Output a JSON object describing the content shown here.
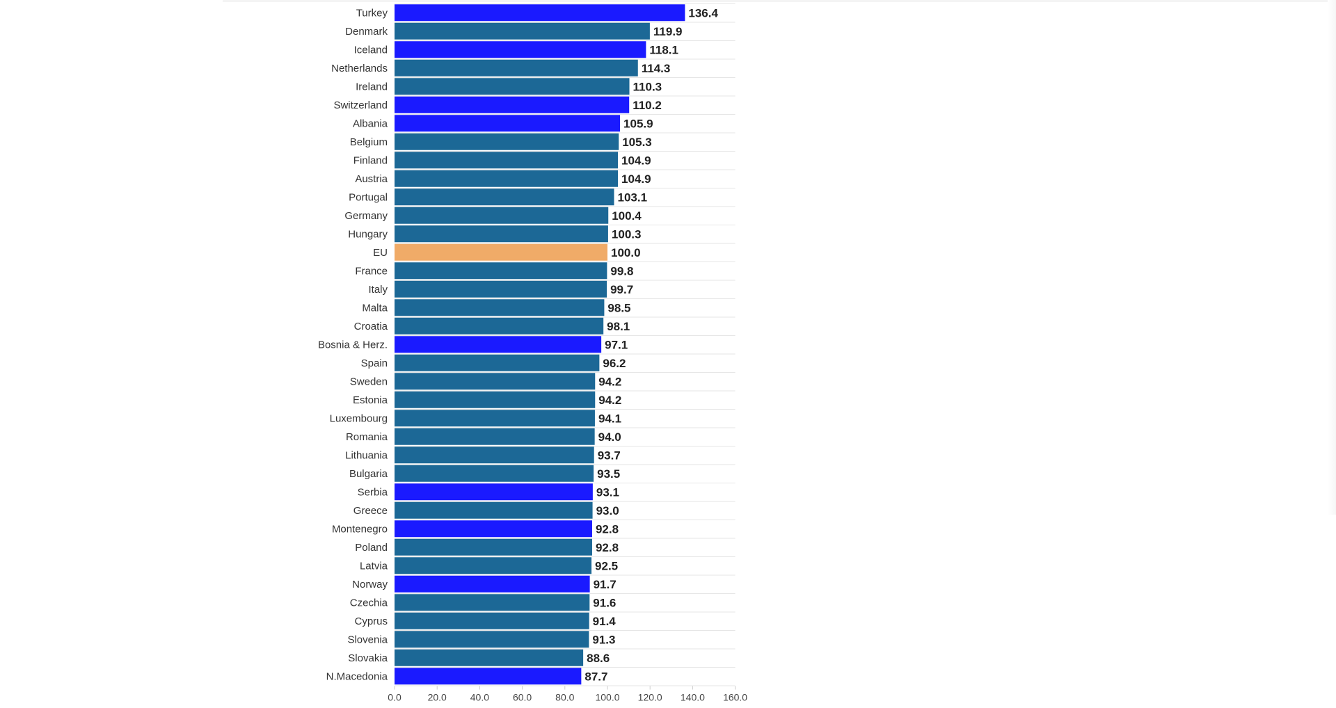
{
  "colors": {
    "highlight": "#1a1aff",
    "default": "#1c6896",
    "eu": "#f0ab68",
    "grid": "#e6e6e6",
    "value_text": "#222222"
  },
  "chart_data": {
    "type": "bar",
    "orientation": "horizontal",
    "title": "",
    "xlabel": "",
    "ylabel": "",
    "xlim": [
      0,
      160
    ],
    "grid": true,
    "ticks": [
      "0.0",
      "20.0",
      "40.0",
      "60.0",
      "80.0",
      "100.0",
      "120.0",
      "140.0",
      "160.0"
    ],
    "tick_values": [
      0,
      20,
      40,
      60,
      80,
      100,
      120,
      140,
      160
    ],
    "categories": [
      "Turkey",
      "Denmark",
      "Iceland",
      "Netherlands",
      "Ireland",
      "Switzerland",
      "Albania",
      "Belgium",
      "Finland",
      "Austria",
      "Portugal",
      "Germany",
      "Hungary",
      "EU",
      "France",
      "Italy",
      "Malta",
      "Croatia",
      "Bosnia & Herz.",
      "Spain",
      "Sweden",
      "Estonia",
      "Luxembourg",
      "Romania",
      "Lithuania",
      "Bulgaria",
      "Serbia",
      "Greece",
      "Montenegro",
      "Poland",
      "Latvia",
      "Norway",
      "Czechia",
      "Cyprus",
      "Slovenia",
      "Slovakia",
      "N.Macedonia"
    ],
    "values": [
      136.4,
      119.9,
      118.1,
      114.3,
      110.3,
      110.2,
      105.9,
      105.3,
      104.9,
      104.9,
      103.1,
      100.4,
      100.3,
      100.0,
      99.8,
      99.7,
      98.5,
      98.1,
      97.1,
      96.2,
      94.2,
      94.2,
      94.1,
      94.0,
      93.7,
      93.5,
      93.1,
      93.0,
      92.8,
      92.8,
      92.5,
      91.7,
      91.6,
      91.4,
      91.3,
      88.6,
      87.7
    ],
    "value_labels": [
      "136.4",
      "119.9",
      "118.1",
      "114.3",
      "110.3",
      "110.2",
      "105.9",
      "105.3",
      "104.9",
      "104.9",
      "103.1",
      "100.4",
      "100.3",
      "100.0",
      "99.8",
      "99.7",
      "98.5",
      "98.1",
      "97.1",
      "96.2",
      "94.2",
      "94.2",
      "94.1",
      "94.0",
      "93.7",
      "93.5",
      "93.1",
      "93.0",
      "92.8",
      "92.8",
      "92.5",
      "91.7",
      "91.6",
      "91.4",
      "91.3",
      "88.6",
      "87.7"
    ],
    "groups": [
      "non-eu",
      "eu-member",
      "non-eu",
      "eu-member",
      "eu-member",
      "non-eu",
      "non-eu",
      "eu-member",
      "eu-member",
      "eu-member",
      "eu-member",
      "eu-member",
      "eu-member",
      "eu-average",
      "eu-member",
      "eu-member",
      "eu-member",
      "eu-member",
      "non-eu",
      "eu-member",
      "eu-member",
      "eu-member",
      "eu-member",
      "eu-member",
      "eu-member",
      "eu-member",
      "non-eu",
      "eu-member",
      "non-eu",
      "eu-member",
      "eu-member",
      "non-eu",
      "eu-member",
      "eu-member",
      "eu-member",
      "eu-member",
      "non-eu"
    ]
  }
}
